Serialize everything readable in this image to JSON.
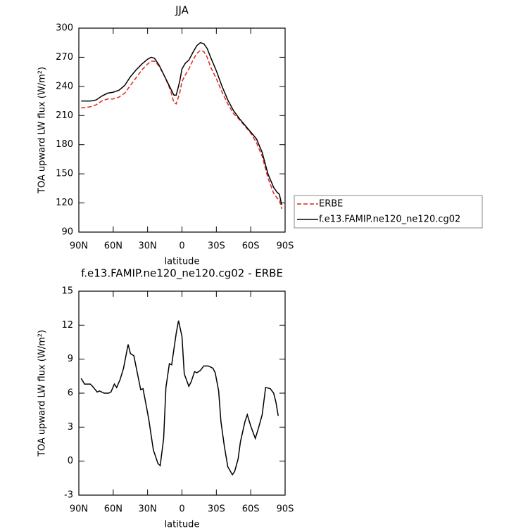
{
  "chart_data": [
    {
      "type": "line",
      "title": "JJA",
      "x_label": "latitude",
      "y_label": "TOA upward LW flux (W/m²)",
      "x": [
        88,
        85,
        80,
        75,
        70,
        65,
        60,
        55,
        50,
        45,
        40,
        35,
        30,
        27,
        24,
        20,
        15,
        10,
        7,
        5,
        2,
        0,
        -3,
        -6,
        -10,
        -13,
        -16,
        -19,
        -22,
        -25,
        -30,
        -35,
        -40,
        -45,
        -50,
        -55,
        -60,
        -65,
        -70,
        -75,
        -80,
        -83,
        -85,
        -87
      ],
      "series": [
        {
          "name": "ERBE",
          "color": "#e3241f",
          "linestyle": "dashed",
          "values": [
            218,
            218,
            219,
            221,
            225,
            227,
            227,
            229,
            233,
            241,
            249,
            257,
            263,
            266,
            266,
            261,
            250,
            236,
            223,
            222,
            233,
            245,
            252,
            258,
            268,
            274,
            277,
            276,
            270,
            260,
            248,
            234,
            222,
            212,
            206,
            199,
            192,
            182,
            168,
            146,
            130,
            125,
            123,
            114
          ]
        },
        {
          "name": "f.e13.FAMIP.ne120_ne120.cg02",
          "color": "#000000",
          "linestyle": "solid",
          "values": [
            225,
            225,
            225,
            226,
            230,
            233,
            234,
            236,
            241,
            250,
            257,
            263,
            268,
            270,
            269,
            262,
            250,
            238,
            231,
            231,
            245,
            258,
            264,
            267,
            276,
            282,
            285,
            284,
            279,
            270,
            256,
            240,
            226,
            215,
            207,
            200,
            193,
            186,
            172,
            150,
            136,
            131,
            129,
            118
          ]
        }
      ],
      "xlim": [
        90,
        -90
      ],
      "xticks": [
        {
          "value": 90,
          "label": "90N"
        },
        {
          "value": 60,
          "label": "60N"
        },
        {
          "value": 30,
          "label": "30N"
        },
        0,
        {
          "value": -30,
          "label": "30S"
        },
        {
          "value": -60,
          "label": "60S"
        },
        {
          "value": -90,
          "label": "90S"
        }
      ],
      "ylim": [
        90,
        300
      ],
      "yticks": [
        90,
        120,
        150,
        180,
        210,
        240,
        270,
        300
      ],
      "legend": "right"
    },
    {
      "type": "line",
      "title": "f.e13.FAMIP.ne120_ne120.cg02 - ERBE",
      "x_label": "latitude",
      "y_label": "TOA upward LW flux (W/m²)",
      "x": [
        88,
        85,
        80,
        78,
        74,
        72,
        68,
        64,
        62,
        59,
        57,
        54,
        51,
        47,
        45,
        42,
        40,
        36,
        34,
        31,
        29,
        25,
        21,
        19,
        16,
        14,
        11,
        9,
        5,
        3,
        0,
        -2,
        -6,
        -8,
        -11,
        -13,
        -16,
        -19,
        -23,
        -27,
        -29,
        -32,
        -34,
        -37,
        -40,
        -44,
        -46,
        -49,
        -51,
        -55,
        -57,
        -60,
        -64,
        -67,
        -70,
        -73,
        -77,
        -80,
        -82,
        -84
      ],
      "series": [
        {
          "name": "f.e13.FAMIP.ne120_ne120.cg02 - ERBE",
          "color": "#000000",
          "linestyle": "solid",
          "values": [
            7.3,
            6.8,
            6.8,
            6.6,
            6.1,
            6.2,
            6.0,
            6.0,
            6.1,
            6.8,
            6.5,
            7.2,
            8.2,
            10.3,
            9.5,
            9.3,
            8.3,
            6.3,
            6.4,
            4.8,
            3.7,
            1.0,
            -0.2,
            -0.4,
            2.0,
            6.5,
            8.6,
            8.5,
            11.3,
            12.4,
            11.0,
            7.7,
            6.6,
            7.0,
            7.9,
            7.8,
            8.0,
            8.4,
            8.4,
            8.2,
            7.8,
            6.2,
            3.5,
            1.3,
            -0.5,
            -1.2,
            -0.9,
            0.2,
            1.7,
            3.5,
            4.1,
            3.1,
            2.0,
            3.0,
            4.1,
            6.5,
            6.4,
            6.0,
            5.2,
            4.0
          ]
        }
      ],
      "xlim": [
        90,
        -90
      ],
      "xticks": [
        {
          "value": 90,
          "label": "90N"
        },
        {
          "value": 60,
          "label": "60N"
        },
        {
          "value": 30,
          "label": "30N"
        },
        0,
        {
          "value": -30,
          "label": "30S"
        },
        {
          "value": -60,
          "label": "60S"
        },
        {
          "value": -90,
          "label": "90S"
        }
      ],
      "ylim": [
        -3,
        15
      ],
      "yticks": [
        -3,
        0,
        3,
        6,
        9,
        12,
        15
      ]
    }
  ]
}
